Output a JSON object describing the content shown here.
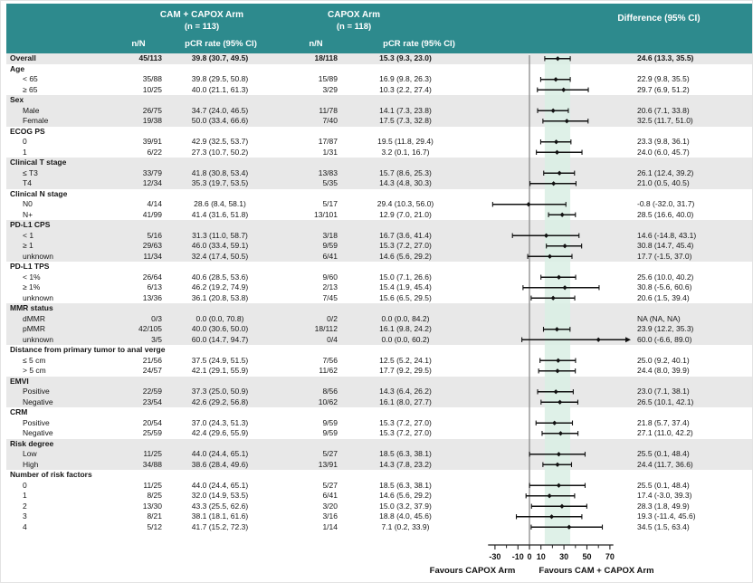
{
  "header": {
    "arm1_title": "CAM + CAPOX Arm",
    "arm1_n": "(n = 113)",
    "arm2_title": "CAPOX Arm",
    "arm2_n": "(n = 118)",
    "diff_title": "Difference (95% CI)",
    "nN_label": "n/N",
    "pcr_label": "pCR rate (95% CI)"
  },
  "colors": {
    "header_teal": "#2d8a8d",
    "row_shade": "#e8e8e8",
    "band_mint": "#d9efe4",
    "zero_line": "#8a8a8a",
    "ci_black": "#111111"
  },
  "chart_data": {
    "type": "scatter",
    "subtype": "forest-plot",
    "x_axis": {
      "ticks": [
        -30,
        -10,
        0,
        10,
        30,
        50,
        70
      ],
      "minor_ticks": [
        -20,
        20,
        40,
        60
      ],
      "range": [
        -36,
        73
      ],
      "shaded_band": [
        13.3,
        35.5
      ],
      "favours_left": "Favours CAPOX Arm",
      "favours_right": "Favours CAM + CAPOX Arm"
    },
    "rows": [
      {
        "label": "Overall",
        "type": "overall",
        "shade": true,
        "a_nN": "45/113",
        "a_pcr": "39.8 (30.7, 49.5)",
        "b_nN": "18/118",
        "b_pcr": "15.3 (9.3, 23.0)",
        "diff": "24.6 (13.3, 35.5)",
        "est": 24.6,
        "lo": 13.3,
        "hi": 35.5
      },
      {
        "label": "Age",
        "type": "group",
        "shade": false
      },
      {
        "label": "< 65",
        "type": "item",
        "shade": false,
        "a_nN": "35/88",
        "a_pcr": "39.8 (29.5, 50.8)",
        "b_nN": "15/89",
        "b_pcr": "16.9 (9.8, 26.3)",
        "diff": "22.9 (9.8, 35.5)",
        "est": 22.9,
        "lo": 9.8,
        "hi": 35.5
      },
      {
        "label": "≥ 65",
        "type": "item",
        "shade": false,
        "a_nN": "10/25",
        "a_pcr": "40.0 (21.1, 61.3)",
        "b_nN": "3/29",
        "b_pcr": "10.3 (2.2, 27.4)",
        "diff": "29.7 (6.9, 51.2)",
        "est": 29.7,
        "lo": 6.9,
        "hi": 51.2
      },
      {
        "label": "Sex",
        "type": "group",
        "shade": true
      },
      {
        "label": "Male",
        "type": "item",
        "shade": true,
        "a_nN": "26/75",
        "a_pcr": "34.7 (24.0, 46.5)",
        "b_nN": "11/78",
        "b_pcr": "14.1 (7.3, 23.8)",
        "diff": "20.6 (7.1, 33.8)",
        "est": 20.6,
        "lo": 7.1,
        "hi": 33.8
      },
      {
        "label": "Female",
        "type": "item",
        "shade": true,
        "a_nN": "19/38",
        "a_pcr": "50.0 (33.4, 66.6)",
        "b_nN": "7/40",
        "b_pcr": "17.5 (7.3, 32.8)",
        "diff": "32.5 (11.7, 51.0)",
        "est": 32.5,
        "lo": 11.7,
        "hi": 51.0
      },
      {
        "label": "ECOG PS",
        "type": "group",
        "shade": false
      },
      {
        "label": "0",
        "type": "item",
        "shade": false,
        "a_nN": "39/91",
        "a_pcr": "42.9 (32.5, 53.7)",
        "b_nN": "17/87",
        "b_pcr": "19.5 (11.8, 29.4)",
        "diff": "23.3 (9.8, 36.1)",
        "est": 23.3,
        "lo": 9.8,
        "hi": 36.1
      },
      {
        "label": "1",
        "type": "item",
        "shade": false,
        "a_nN": "6/22",
        "a_pcr": "27.3 (10.7, 50.2)",
        "b_nN": "1/31",
        "b_pcr": "3.2 (0.1, 16.7)",
        "diff": "24.0 (6.0, 45.7)",
        "est": 24.0,
        "lo": 6.0,
        "hi": 45.7
      },
      {
        "label": "Clinical T stage",
        "type": "group",
        "shade": true
      },
      {
        "label": "≤ T3",
        "type": "item",
        "shade": true,
        "a_nN": "33/79",
        "a_pcr": "41.8 (30.8, 53.4)",
        "b_nN": "13/83",
        "b_pcr": "15.7 (8.6, 25.3)",
        "diff": "26.1 (12.4, 39.2)",
        "est": 26.1,
        "lo": 12.4,
        "hi": 39.2
      },
      {
        "label": "T4",
        "type": "item",
        "shade": true,
        "a_nN": "12/34",
        "a_pcr": "35.3 (19.7, 53.5)",
        "b_nN": "5/35",
        "b_pcr": "14.3 (4.8, 30.3)",
        "diff": "21.0 (0.5, 40.5)",
        "est": 21.0,
        "lo": 0.5,
        "hi": 40.5
      },
      {
        "label": "Clinical N stage",
        "type": "group",
        "shade": false
      },
      {
        "label": "N0",
        "type": "item",
        "shade": false,
        "a_nN": "4/14",
        "a_pcr": "28.6 (8.4, 58.1)",
        "b_nN": "5/17",
        "b_pcr": "29.4 (10.3, 56.0)",
        "diff": "-0.8 (-32.0, 31.7)",
        "est": -0.8,
        "lo": -32.0,
        "hi": 31.7
      },
      {
        "label": "N+",
        "type": "item",
        "shade": false,
        "a_nN": "41/99",
        "a_pcr": "41.4 (31.6, 51.8)",
        "b_nN": "13/101",
        "b_pcr": "12.9 (7.0, 21.0)",
        "diff": "28.5 (16.6, 40.0)",
        "est": 28.5,
        "lo": 16.6,
        "hi": 40.0
      },
      {
        "label": "PD-L1 CPS",
        "type": "group",
        "shade": true
      },
      {
        "label": "< 1",
        "type": "item",
        "shade": true,
        "a_nN": "5/16",
        "a_pcr": "31.3 (11.0, 58.7)",
        "b_nN": "3/18",
        "b_pcr": "16.7 (3.6, 41.4)",
        "diff": "14.6 (-14.8, 43.1)",
        "est": 14.6,
        "lo": -14.8,
        "hi": 43.1
      },
      {
        "label": "≥ 1",
        "type": "item",
        "shade": true,
        "a_nN": "29/63",
        "a_pcr": "46.0 (33.4, 59.1)",
        "b_nN": "9/59",
        "b_pcr": "15.3 (7.2, 27.0)",
        "diff": "30.8 (14.7, 45.4)",
        "est": 30.8,
        "lo": 14.7,
        "hi": 45.4
      },
      {
        "label": "unknown",
        "type": "item",
        "shade": true,
        "a_nN": "11/34",
        "a_pcr": "32.4 (17.4, 50.5)",
        "b_nN": "6/41",
        "b_pcr": "14.6 (5.6, 29.2)",
        "diff": "17.7 (-1.5, 37.0)",
        "est": 17.7,
        "lo": -1.5,
        "hi": 37.0
      },
      {
        "label": "PD-L1 TPS",
        "type": "group",
        "shade": false
      },
      {
        "label": "< 1%",
        "type": "item",
        "shade": false,
        "a_nN": "26/64",
        "a_pcr": "40.6 (28.5, 53.6)",
        "b_nN": "9/60",
        "b_pcr": "15.0 (7.1, 26.6)",
        "diff": "25.6 (10.0, 40.2)",
        "est": 25.6,
        "lo": 10.0,
        "hi": 40.2
      },
      {
        "label": "≥ 1%",
        "type": "item",
        "shade": false,
        "a_nN": "6/13",
        "a_pcr": "46.2 (19.2, 74.9)",
        "b_nN": "2/13",
        "b_pcr": "15.4 (1.9, 45.4)",
        "diff": "30.8 (-5.6, 60.6)",
        "est": 30.8,
        "lo": -5.6,
        "hi": 60.6
      },
      {
        "label": "unknown",
        "type": "item",
        "shade": false,
        "a_nN": "13/36",
        "a_pcr": "36.1 (20.8, 53.8)",
        "b_nN": "7/45",
        "b_pcr": "15.6 (6.5, 29.5)",
        "diff": "20.6 (1.5, 39.4)",
        "est": 20.6,
        "lo": 1.5,
        "hi": 39.4
      },
      {
        "label": "MMR status",
        "type": "group",
        "shade": true
      },
      {
        "label": "dMMR",
        "type": "item",
        "shade": true,
        "a_nN": "0/3",
        "a_pcr": "0.0 (0.0, 70.8)",
        "b_nN": "0/2",
        "b_pcr": "0.0 (0.0, 84.2)",
        "diff": "NA (NA, NA)",
        "est": null,
        "lo": null,
        "hi": null
      },
      {
        "label": "pMMR",
        "type": "item",
        "shade": true,
        "a_nN": "42/105",
        "a_pcr": "40.0 (30.6, 50.0)",
        "b_nN": "18/112",
        "b_pcr": "16.1 (9.8, 24.2)",
        "diff": "23.9 (12.2, 35.3)",
        "est": 23.9,
        "lo": 12.2,
        "hi": 35.3
      },
      {
        "label": "unknown",
        "type": "item",
        "shade": true,
        "a_nN": "3/5",
        "a_pcr": "60.0 (14.7, 94.7)",
        "b_nN": "0/4",
        "b_pcr": "0.0 (0.0, 60.2)",
        "diff": "60.0 (-6.6, 89.0)",
        "est": 60.0,
        "lo": -6.6,
        "hi": 89.0,
        "arrow_right": true
      },
      {
        "label": "Distance from primary tumor to anal verge",
        "type": "group",
        "shade": false
      },
      {
        "label": "≤ 5 cm",
        "type": "item",
        "shade": false,
        "a_nN": "21/56",
        "a_pcr": "37.5 (24.9, 51.5)",
        "b_nN": "7/56",
        "b_pcr": "12.5 (5.2, 24.1)",
        "diff": "25.0 (9.2, 40.1)",
        "est": 25.0,
        "lo": 9.2,
        "hi": 40.1
      },
      {
        "label": "> 5 cm",
        "type": "item",
        "shade": false,
        "a_nN": "24/57",
        "a_pcr": "42.1 (29.1, 55.9)",
        "b_nN": "11/62",
        "b_pcr": "17.7 (9.2, 29.5)",
        "diff": "24.4 (8.0, 39.9)",
        "est": 24.4,
        "lo": 8.0,
        "hi": 39.9
      },
      {
        "label": "EMVI",
        "type": "group",
        "shade": true
      },
      {
        "label": "Positive",
        "type": "item",
        "shade": true,
        "a_nN": "22/59",
        "a_pcr": "37.3 (25.0, 50.9)",
        "b_nN": "8/56",
        "b_pcr": "14.3 (6.4, 26.2)",
        "diff": "23.0 (7.1, 38.1)",
        "est": 23.0,
        "lo": 7.1,
        "hi": 38.1
      },
      {
        "label": "Negative",
        "type": "item",
        "shade": true,
        "a_nN": "23/54",
        "a_pcr": "42.6 (29.2, 56.8)",
        "b_nN": "10/62",
        "b_pcr": "16.1 (8.0, 27.7)",
        "diff": "26.5 (10.1, 42.1)",
        "est": 26.5,
        "lo": 10.1,
        "hi": 42.1
      },
      {
        "label": "CRM",
        "type": "group",
        "shade": false
      },
      {
        "label": "Positive",
        "type": "item",
        "shade": false,
        "a_nN": "20/54",
        "a_pcr": "37.0 (24.3, 51.3)",
        "b_nN": "9/59",
        "b_pcr": "15.3 (7.2, 27.0)",
        "diff": "21.8 (5.7, 37.4)",
        "est": 21.8,
        "lo": 5.7,
        "hi": 37.4
      },
      {
        "label": "Negative",
        "type": "item",
        "shade": false,
        "a_nN": "25/59",
        "a_pcr": "42.4 (29.6, 55.9)",
        "b_nN": "9/59",
        "b_pcr": "15.3 (7.2, 27.0)",
        "diff": "27.1 (11.0, 42.2)",
        "est": 27.1,
        "lo": 11.0,
        "hi": 42.2
      },
      {
        "label": "Risk degree",
        "type": "group",
        "shade": true
      },
      {
        "label": "Low",
        "type": "item",
        "shade": true,
        "a_nN": "11/25",
        "a_pcr": "44.0 (24.4, 65.1)",
        "b_nN": "5/27",
        "b_pcr": "18.5 (6.3, 38.1)",
        "diff": "25.5 (0.1, 48.4)",
        "est": 25.5,
        "lo": 0.1,
        "hi": 48.4
      },
      {
        "label": "High",
        "type": "item",
        "shade": true,
        "a_nN": "34/88",
        "a_pcr": "38.6 (28.4, 49.6)",
        "b_nN": "13/91",
        "b_pcr": "14.3 (7.8, 23.2)",
        "diff": "24.4 (11.7, 36.6)",
        "est": 24.4,
        "lo": 11.7,
        "hi": 36.6
      },
      {
        "label": "Number of risk factors",
        "type": "group",
        "shade": false
      },
      {
        "label": "0",
        "type": "item",
        "shade": false,
        "a_nN": "11/25",
        "a_pcr": "44.0 (24.4, 65.1)",
        "b_nN": "5/27",
        "b_pcr": "18.5 (6.3, 38.1)",
        "diff": "25.5 (0.1, 48.4)",
        "est": 25.5,
        "lo": 0.1,
        "hi": 48.4
      },
      {
        "label": "1",
        "type": "item",
        "shade": false,
        "a_nN": "8/25",
        "a_pcr": "32.0 (14.9, 53.5)",
        "b_nN": "6/41",
        "b_pcr": "14.6 (5.6, 29.2)",
        "diff": "17.4 (-3.0, 39.3)",
        "est": 17.4,
        "lo": -3.0,
        "hi": 39.3
      },
      {
        "label": "2",
        "type": "item",
        "shade": false,
        "a_nN": "13/30",
        "a_pcr": "43.3 (25.5, 62.6)",
        "b_nN": "3/20",
        "b_pcr": "15.0 (3.2, 37.9)",
        "diff": "28.3 (1.8, 49.9)",
        "est": 28.3,
        "lo": 1.8,
        "hi": 49.9
      },
      {
        "label": "3",
        "type": "item",
        "shade": false,
        "a_nN": "8/21",
        "a_pcr": "38.1 (18.1, 61.6)",
        "b_nN": "3/16",
        "b_pcr": "18.8 (4.0, 45.6)",
        "diff": "19.3 (-11.4, 45.6)",
        "est": 19.3,
        "lo": -11.4,
        "hi": 45.6
      },
      {
        "label": "4",
        "type": "item",
        "shade": false,
        "a_nN": "5/12",
        "a_pcr": "41.7 (15.2, 72.3)",
        "b_nN": "1/14",
        "b_pcr": "7.1 (0.2, 33.9)",
        "diff": "34.5 (1.5, 63.4)",
        "est": 34.5,
        "lo": 1.5,
        "hi": 63.4
      }
    ]
  }
}
